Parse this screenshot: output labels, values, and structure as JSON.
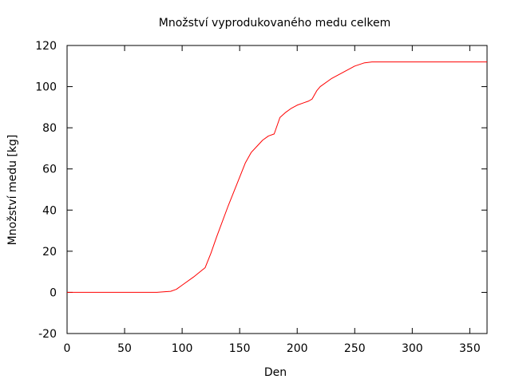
{
  "chart_data": {
    "type": "line",
    "title": "Množství vyprodukovaného medu celkem",
    "xlabel": "Den",
    "ylabel": "Množství medu [kg]",
    "xlim": [
      0,
      365
    ],
    "ylim": [
      -20,
      120
    ],
    "x_ticks": [
      0,
      50,
      100,
      150,
      200,
      250,
      300,
      350
    ],
    "y_ticks": [
      -20,
      0,
      20,
      40,
      60,
      80,
      100,
      120
    ],
    "grid": false,
    "line_color": "#ff0000",
    "series": [
      {
        "x": [
          0,
          50,
          78,
          85,
          90,
          95,
          100,
          110,
          120,
          125,
          130,
          140,
          150,
          155,
          160,
          165,
          170,
          175,
          180,
          185,
          190,
          195,
          200,
          205,
          210,
          213,
          217,
          220,
          230,
          240,
          250,
          258,
          265,
          300,
          365
        ],
        "y": [
          0,
          0,
          0,
          0.3,
          0.5,
          1.5,
          3.5,
          7.5,
          12,
          19,
          27,
          42,
          56,
          63,
          68,
          71,
          74,
          76,
          77,
          85,
          87.5,
          89.5,
          91,
          92,
          93,
          94,
          98,
          100,
          104,
          107,
          110,
          111.5,
          112,
          112,
          112
        ]
      }
    ]
  }
}
